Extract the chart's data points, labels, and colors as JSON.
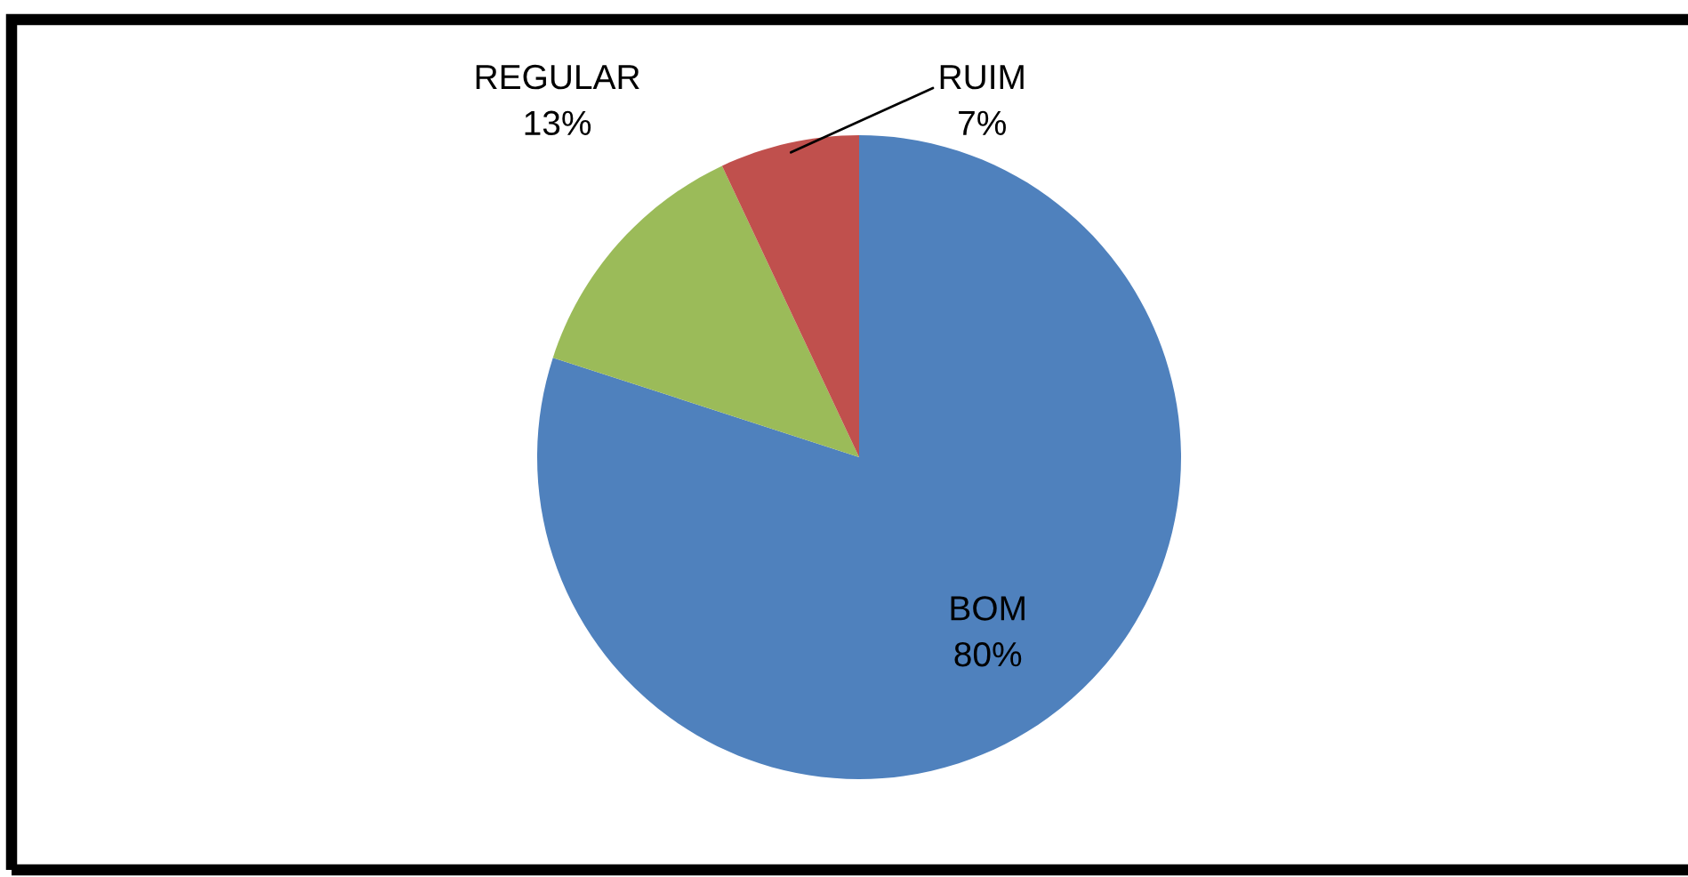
{
  "chart_data": {
    "type": "pie",
    "categories": [
      "BOM",
      "REGULAR",
      "RUIM"
    ],
    "values": [
      80,
      13,
      7
    ],
    "colors": [
      "#4f81bd",
      "#9bbb59",
      "#c0504d"
    ],
    "value_labels": [
      "80%",
      "13%",
      "7%"
    ]
  }
}
